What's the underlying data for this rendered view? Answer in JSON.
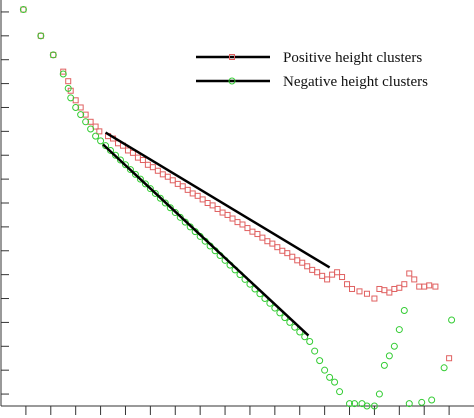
{
  "chart_data": {
    "type": "scatter",
    "title": "",
    "xlabel": "",
    "ylabel": "",
    "xlim": [
      0,
      19
    ],
    "ylim": [
      0,
      17
    ],
    "x_ticks": [
      1,
      2,
      3,
      4,
      5,
      6,
      7,
      8,
      9,
      10,
      11,
      12,
      13,
      14,
      15,
      16,
      17,
      18
    ],
    "y_ticks": [
      0.5,
      1.5,
      2.5,
      3.5,
      4.5,
      5.5,
      6.5,
      7.5,
      8.5,
      9.5,
      10.5,
      11.5,
      12.5,
      13.5,
      14.5,
      15.5,
      16.5
    ],
    "legend_position": "top-right",
    "series": [
      {
        "name": "Positive height clusters",
        "marker": "square",
        "color": "#e06060",
        "points": [
          [
            0.9,
            16.6
          ],
          [
            1.6,
            15.5
          ],
          [
            2.1,
            14.7
          ],
          [
            2.5,
            14.0
          ],
          [
            2.7,
            13.6
          ],
          [
            2.8,
            13.2
          ],
          [
            3.0,
            12.8
          ],
          [
            3.2,
            12.5
          ],
          [
            3.4,
            12.2
          ],
          [
            3.6,
            11.9
          ],
          [
            3.8,
            11.7
          ],
          [
            3.95,
            11.5
          ],
          [
            4.3,
            11.3
          ],
          [
            4.5,
            11.2
          ],
          [
            4.7,
            11.0
          ],
          [
            4.9,
            10.9
          ],
          [
            5.1,
            10.7
          ],
          [
            5.3,
            10.6
          ],
          [
            5.5,
            10.4
          ],
          [
            5.7,
            10.3
          ],
          [
            5.9,
            10.1
          ],
          [
            6.1,
            10.0
          ],
          [
            6.3,
            9.85
          ],
          [
            6.5,
            9.7
          ],
          [
            6.7,
            9.6
          ],
          [
            6.9,
            9.45
          ],
          [
            7.1,
            9.3
          ],
          [
            7.3,
            9.2
          ],
          [
            7.5,
            9.05
          ],
          [
            7.7,
            8.9
          ],
          [
            7.9,
            8.8
          ],
          [
            8.1,
            8.65
          ],
          [
            8.3,
            8.5
          ],
          [
            8.5,
            8.4
          ],
          [
            8.7,
            8.25
          ],
          [
            8.9,
            8.1
          ],
          [
            9.1,
            8.0
          ],
          [
            9.3,
            7.85
          ],
          [
            9.5,
            7.7
          ],
          [
            9.7,
            7.6
          ],
          [
            9.9,
            7.45
          ],
          [
            10.1,
            7.3
          ],
          [
            10.3,
            7.2
          ],
          [
            10.5,
            7.05
          ],
          [
            10.7,
            6.9
          ],
          [
            10.9,
            6.8
          ],
          [
            11.1,
            6.65
          ],
          [
            11.3,
            6.5
          ],
          [
            11.5,
            6.4
          ],
          [
            11.7,
            6.25
          ],
          [
            11.9,
            6.1
          ],
          [
            12.1,
            6.0
          ],
          [
            12.3,
            5.85
          ],
          [
            12.5,
            5.7
          ],
          [
            12.7,
            5.6
          ],
          [
            12.9,
            5.45
          ],
          [
            13.1,
            5.3
          ],
          [
            13.3,
            5.5
          ],
          [
            13.5,
            5.6
          ],
          [
            13.7,
            5.4
          ],
          [
            13.9,
            5.1
          ],
          [
            14.1,
            4.9
          ],
          [
            14.4,
            4.8
          ],
          [
            14.7,
            4.7
          ],
          [
            15.0,
            4.5
          ],
          [
            15.2,
            4.9
          ],
          [
            15.4,
            4.85
          ],
          [
            15.6,
            4.75
          ],
          [
            15.8,
            4.9
          ],
          [
            16.0,
            4.95
          ],
          [
            16.2,
            5.1
          ],
          [
            16.4,
            5.55
          ],
          [
            16.6,
            5.3
          ],
          [
            16.8,
            5.0
          ],
          [
            17.0,
            5.0
          ],
          [
            17.2,
            5.05
          ],
          [
            17.45,
            5.0
          ],
          [
            18.0,
            2.0
          ]
        ]
      },
      {
        "name": "Negative height clusters",
        "marker": "circle",
        "color": "#33cc33",
        "points": [
          [
            0.9,
            16.6
          ],
          [
            1.6,
            15.5
          ],
          [
            2.1,
            14.7
          ],
          [
            2.5,
            13.9
          ],
          [
            2.7,
            13.3
          ],
          [
            2.8,
            12.9
          ],
          [
            3.0,
            12.5
          ],
          [
            3.2,
            12.2
          ],
          [
            3.4,
            11.9
          ],
          [
            3.6,
            11.6
          ],
          [
            3.8,
            11.3
          ],
          [
            4.0,
            11.1
          ],
          [
            4.2,
            10.9
          ],
          [
            4.4,
            10.7
          ],
          [
            4.6,
            10.5
          ],
          [
            4.8,
            10.3
          ],
          [
            5.0,
            10.1
          ],
          [
            5.2,
            9.9
          ],
          [
            5.4,
            9.7
          ],
          [
            5.6,
            9.5
          ],
          [
            5.8,
            9.3
          ],
          [
            6.0,
            9.1
          ],
          [
            6.2,
            8.9
          ],
          [
            6.4,
            8.7
          ],
          [
            6.6,
            8.5
          ],
          [
            6.8,
            8.3
          ],
          [
            7.0,
            8.1
          ],
          [
            7.2,
            7.9
          ],
          [
            7.4,
            7.7
          ],
          [
            7.6,
            7.5
          ],
          [
            7.8,
            7.3
          ],
          [
            8.0,
            7.1
          ],
          [
            8.2,
            6.9
          ],
          [
            8.4,
            6.7
          ],
          [
            8.6,
            6.5
          ],
          [
            8.8,
            6.3
          ],
          [
            9.0,
            6.1
          ],
          [
            9.2,
            5.9
          ],
          [
            9.4,
            5.7
          ],
          [
            9.6,
            5.5
          ],
          [
            9.8,
            5.3
          ],
          [
            10.0,
            5.1
          ],
          [
            10.2,
            4.9
          ],
          [
            10.4,
            4.7
          ],
          [
            10.6,
            4.5
          ],
          [
            10.8,
            4.3
          ],
          [
            11.0,
            4.1
          ],
          [
            11.2,
            3.9
          ],
          [
            11.4,
            3.7
          ],
          [
            11.6,
            3.5
          ],
          [
            11.8,
            3.3
          ],
          [
            12.0,
            3.1
          ],
          [
            12.2,
            2.9
          ],
          [
            12.4,
            2.7
          ],
          [
            12.6,
            2.3
          ],
          [
            12.8,
            1.9
          ],
          [
            13.0,
            1.5
          ],
          [
            13.2,
            1.2
          ],
          [
            13.4,
            1.0
          ],
          [
            13.6,
            0.6
          ],
          [
            14.0,
            0.1
          ],
          [
            14.2,
            0.1
          ],
          [
            14.5,
            0.1
          ],
          [
            14.7,
            0.0
          ],
          [
            15.0,
            0.0
          ],
          [
            15.2,
            0.5
          ],
          [
            15.4,
            1.7
          ],
          [
            15.6,
            2.1
          ],
          [
            15.8,
            2.5
          ],
          [
            16.0,
            3.2
          ],
          [
            16.2,
            4.0
          ],
          [
            16.4,
            0.1
          ],
          [
            16.9,
            0.15
          ],
          [
            17.3,
            0.25
          ],
          [
            17.8,
            1.6
          ],
          [
            18.1,
            3.6
          ]
        ]
      }
    ],
    "fit_lines": [
      {
        "label": "positive-fit",
        "x": [
          4.2,
          13.2
        ],
        "y": [
          11.45,
          5.8
        ]
      },
      {
        "label": "negative-fit",
        "x": [
          4.1,
          12.35
        ],
        "y": [
          10.95,
          2.95
        ]
      }
    ]
  }
}
